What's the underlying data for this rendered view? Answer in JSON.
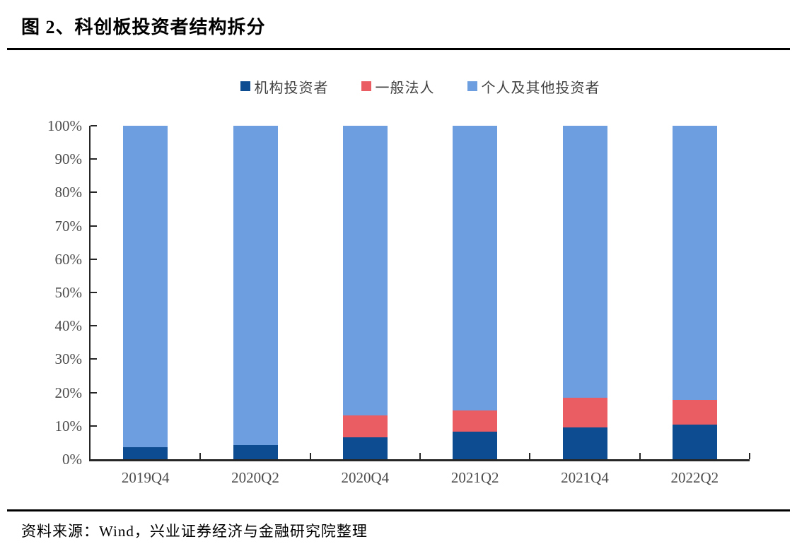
{
  "header": {
    "title": "图 2、科创板投资者结构拆分"
  },
  "footer": {
    "source": "资料来源：Wind，兴业证券经济与金融研究院整理"
  },
  "colors": {
    "institutional": "#0E4C92",
    "legal_person": "#E95D63",
    "individual": "#6D9EE0",
    "axis": "#262626",
    "tick_label": "#4d4d4d",
    "legend_text": "#404040",
    "rule": "#000000"
  },
  "chart_data": {
    "type": "bar",
    "stacked": true,
    "percent_stacked": true,
    "title": "科创板投资者结构拆分",
    "categories": [
      "2019Q4",
      "2020Q2",
      "2020Q4",
      "2021Q2",
      "2021Q4",
      "2022Q2"
    ],
    "series": [
      {
        "name": "机构投资者",
        "color": "#0E4C92",
        "values": [
          3.5,
          4.2,
          6.5,
          8.2,
          9.6,
          10.3
        ]
      },
      {
        "name": "一般法人",
        "color": "#E95D63",
        "values": [
          0,
          0,
          6.6,
          6.5,
          8.9,
          7.6
        ]
      },
      {
        "name": "个人及其他投资者",
        "color": "#6D9EE0",
        "values": [
          96.5,
          95.8,
          86.9,
          85.3,
          81.5,
          82.1
        ]
      }
    ],
    "xlabel": "",
    "ylabel": "",
    "ylim": [
      0,
      100
    ],
    "yticks": [
      "0%",
      "10%",
      "20%",
      "30%",
      "40%",
      "50%",
      "60%",
      "70%",
      "80%",
      "90%",
      "100%"
    ],
    "grid": false,
    "legend_position": "top"
  }
}
